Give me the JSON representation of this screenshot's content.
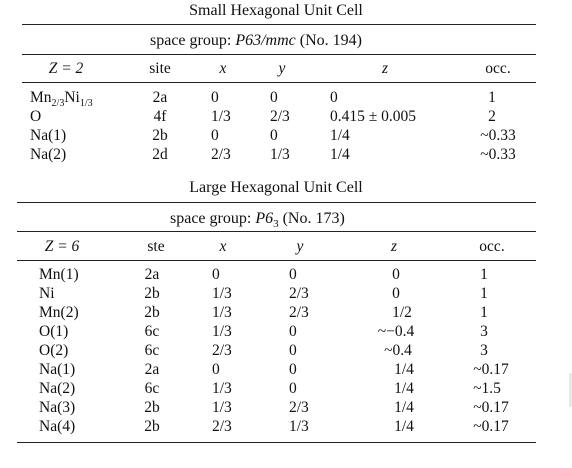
{
  "small": {
    "title": "Small Hexagonal Unit Cell",
    "spacegroup": {
      "prefix": "space group:",
      "symbol": "P63/mmc",
      "number": "(No. 194)"
    },
    "headers": {
      "z_label": "Z = 2",
      "site": "site",
      "x": "x",
      "y": "y",
      "z": "z",
      "occ": "occ."
    },
    "rows": [
      {
        "atom": "Mn",
        "atom_sub1": "2/3",
        "atom_mid": "Ni",
        "atom_sub2": "1/3",
        "site": "2a",
        "x": "0",
        "y": "0",
        "z": "0",
        "occ": "1"
      },
      {
        "atom": "O",
        "site": "4f",
        "x": "1/3",
        "y": "2/3",
        "z": "0.415 ± 0.005",
        "occ": "2"
      },
      {
        "atom": "Na(1)",
        "site": "2b",
        "x": "0",
        "y": "0",
        "z": "1/4",
        "occ": "~0.33"
      },
      {
        "atom": "Na(2)",
        "site": "2d",
        "x": "2/3",
        "y": "1/3",
        "z": "1/4",
        "occ": "~0.33"
      }
    ]
  },
  "large": {
    "title": "Large Hexagonal Unit Cell",
    "spacegroup": {
      "prefix": "space group:",
      "symbol": "P6",
      "symbol_sub": "3",
      "number": "(No. 173)"
    },
    "headers": {
      "z_label": "Z = 6",
      "site": "ste",
      "x": "x",
      "y": "y",
      "z": "z",
      "occ": "occ."
    },
    "rows": [
      {
        "atom": "Mn(1)",
        "site": "2a",
        "x": "0",
        "y": "0",
        "z": "0",
        "occ": "1"
      },
      {
        "atom": "Ni",
        "site": "2b",
        "x": "1/3",
        "y": "2/3",
        "z": "0",
        "occ": "1"
      },
      {
        "atom": "Mn(2)",
        "site": "2b",
        "x": "1/3",
        "y": "2/3",
        "z": "1/2",
        "occ": "1"
      },
      {
        "atom": "O(1)",
        "site": "6c",
        "x": "1/3",
        "y": "0",
        "z": "~−0.4",
        "occ": "3"
      },
      {
        "atom": "O(2)",
        "site": "6c",
        "x": "2/3",
        "y": "0",
        "z": "~0.4",
        "occ": "3"
      },
      {
        "atom": "Na(1)",
        "site": "2a",
        "x": "0",
        "y": "0",
        "z": "1/4",
        "occ": "~0.17"
      },
      {
        "atom": "Na(2)",
        "site": "6c",
        "x": "1/3",
        "y": "0",
        "z": "1/4",
        "occ": "~1.5"
      },
      {
        "atom": "Na(3)",
        "site": "2b",
        "x": "1/3",
        "y": "2/3",
        "z": "1/4",
        "occ": "~0.17"
      },
      {
        "atom": "Na(4)",
        "site": "2b",
        "x": "2/3",
        "y": "1/3",
        "z": "1/4",
        "occ": "~0.17"
      }
    ]
  }
}
